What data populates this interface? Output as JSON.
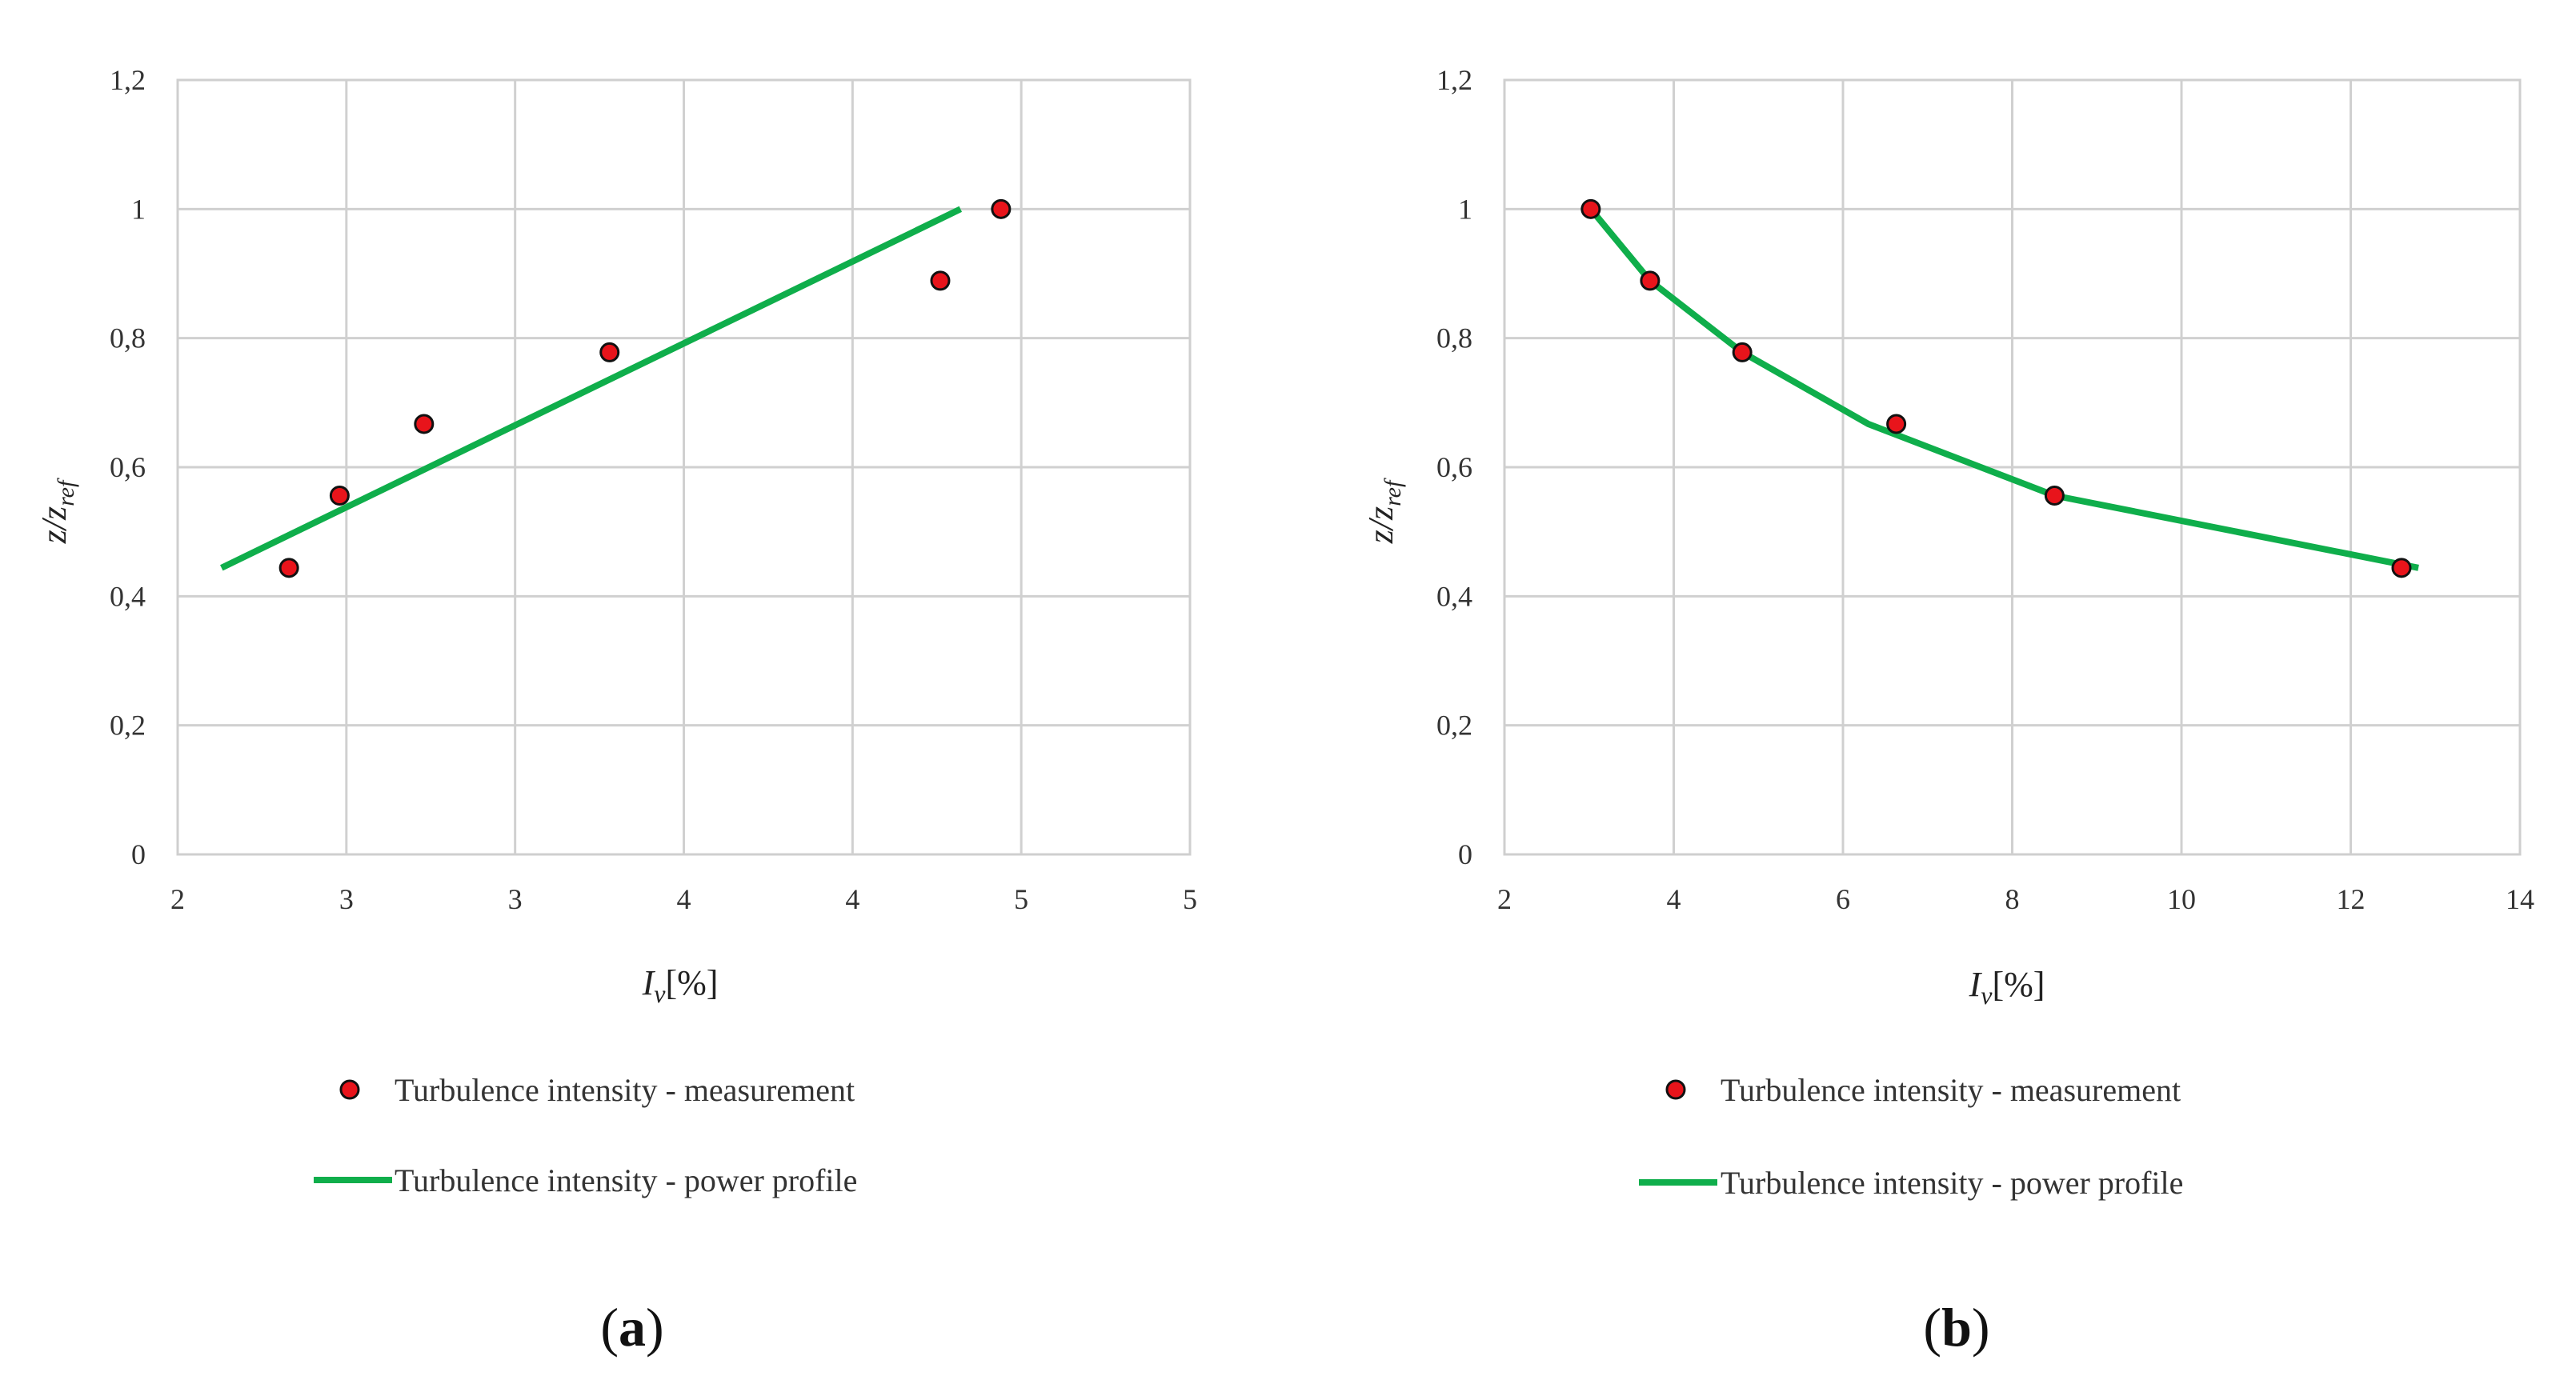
{
  "figure": {
    "panels": [
      "a",
      "b"
    ],
    "panel_label_format": "(%s)"
  },
  "colors": {
    "marker_fill": "#e8141b",
    "marker_stroke": "#111111",
    "line": "#0fae4b",
    "grid": "#d0d0d0"
  },
  "chart_data": [
    {
      "id": "a",
      "type": "scatter",
      "panel_label": "a",
      "xlabel_main": "I",
      "xlabel_sub": "v",
      "xlabel_suffix": "[%]",
      "ylabel_main": "z/z",
      "ylabel_sub": "ref",
      "xlim": [
        2,
        5
      ],
      "ylim": [
        0,
        1.2
      ],
      "x_ticks": [
        2,
        2.5,
        3,
        3.5,
        4,
        4.5,
        5
      ],
      "x_tick_labels": [
        "2",
        "3",
        "3",
        "4",
        "4",
        "5",
        "5"
      ],
      "y_ticks": [
        0,
        0.2,
        0.4,
        0.6,
        0.8,
        1.0,
        1.2
      ],
      "y_tick_labels": [
        "0",
        "0,2",
        "0,4",
        "0,6",
        "0,8",
        "1",
        "1,2"
      ],
      "grid": true,
      "series": [
        {
          "name": "Turbulence intensity - measurement",
          "type": "scatter",
          "x": [
            2.33,
            2.48,
            2.73,
            3.28,
            4.26,
            4.44
          ],
          "y": [
            0.444,
            0.556,
            0.667,
            0.778,
            0.889,
            1.0
          ]
        },
        {
          "name": "Turbulence intensity - power profile",
          "type": "line",
          "x": [
            2.13,
            4.32
          ],
          "y": [
            0.444,
            1.0
          ]
        }
      ],
      "legend_position": "bottom"
    },
    {
      "id": "b",
      "type": "line",
      "panel_label": "b",
      "xlabel_main": "I",
      "xlabel_sub": "v",
      "xlabel_suffix": "[%]",
      "ylabel_main": "z/z",
      "ylabel_sub": "ref",
      "xlim": [
        2,
        14
      ],
      "ylim": [
        0,
        1.2
      ],
      "x_ticks": [
        2,
        4,
        6,
        8,
        10,
        12,
        14
      ],
      "x_tick_labels": [
        "2",
        "4",
        "6",
        "8",
        "10",
        "12",
        "14"
      ],
      "y_ticks": [
        0,
        0.2,
        0.4,
        0.6,
        0.8,
        1.0,
        1.2
      ],
      "y_tick_labels": [
        "0",
        "0,2",
        "0,4",
        "0,6",
        "0,8",
        "1",
        "1,2"
      ],
      "grid": true,
      "series": [
        {
          "name": "Turbulence intensity - measurement",
          "type": "scatter",
          "x": [
            3.02,
            3.72,
            4.81,
            6.63,
            8.5,
            12.6
          ],
          "y": [
            1.0,
            0.889,
            0.778,
            0.667,
            0.556,
            0.444
          ]
        },
        {
          "name": "Turbulence intensity - power profile",
          "type": "line",
          "x": [
            3.02,
            3.72,
            4.81,
            6.3,
            8.5,
            12.8
          ],
          "y": [
            1.0,
            0.889,
            0.778,
            0.667,
            0.556,
            0.444
          ]
        }
      ],
      "legend_position": "bottom"
    }
  ]
}
